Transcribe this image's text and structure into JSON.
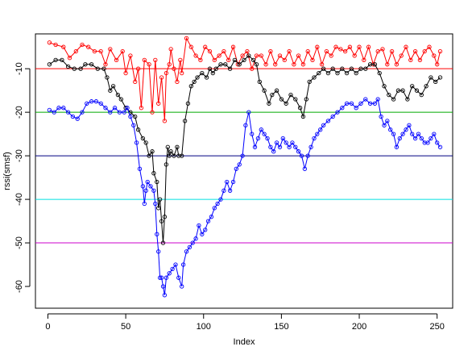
{
  "chart_data": {
    "type": "line",
    "xlabel": "Index",
    "ylabel": "rssi(smsf)",
    "xlim": [
      -8,
      260
    ],
    "ylim": [
      -65,
      -2
    ],
    "xticks": [
      0,
      50,
      100,
      150,
      200,
      250
    ],
    "yticks": [
      -10,
      -20,
      -30,
      -40,
      -50,
      -60
    ],
    "grid": false,
    "hlines": [
      {
        "y": -10,
        "color": "#ff0000"
      },
      {
        "y": -20,
        "color": "#00aa00"
      },
      {
        "y": -30,
        "color": "#000080"
      },
      {
        "y": -40,
        "color": "#00e0e0"
      },
      {
        "y": -50,
        "color": "#cc00cc"
      }
    ],
    "series": [
      {
        "color": "#ff0000",
        "points": [
          [
            1,
            -4
          ],
          [
            5,
            -4.5
          ],
          [
            10,
            -5
          ],
          [
            14,
            -7.5
          ],
          [
            18,
            -6
          ],
          [
            22,
            -4.5
          ],
          [
            26,
            -5
          ],
          [
            30,
            -6
          ],
          [
            34,
            -6
          ],
          [
            37,
            -9
          ],
          [
            40,
            -5.5
          ],
          [
            44,
            -8
          ],
          [
            48,
            -6
          ],
          [
            50,
            -11
          ],
          [
            53,
            -7
          ],
          [
            56,
            -13
          ],
          [
            58,
            -10
          ],
          [
            60,
            -19
          ],
          [
            62,
            -8
          ],
          [
            65,
            -9
          ],
          [
            67,
            -20
          ],
          [
            69,
            -8
          ],
          [
            71,
            -18
          ],
          [
            73,
            -12
          ],
          [
            75,
            -22
          ],
          [
            76,
            -11
          ],
          [
            78,
            -9
          ],
          [
            79,
            -5.5
          ],
          [
            81,
            -10
          ],
          [
            83,
            -13
          ],
          [
            85,
            -8
          ],
          [
            86,
            -11
          ],
          [
            89,
            -3
          ],
          [
            92,
            -5
          ],
          [
            95,
            -7
          ],
          [
            98,
            -8
          ],
          [
            101,
            -5
          ],
          [
            104,
            -6
          ],
          [
            107,
            -8
          ],
          [
            110,
            -7
          ],
          [
            113,
            -6
          ],
          [
            116,
            -8
          ],
          [
            119,
            -5
          ],
          [
            122,
            -9
          ],
          [
            125,
            -7
          ],
          [
            128,
            -6
          ],
          [
            131,
            -10
          ],
          [
            134,
            -7
          ],
          [
            137,
            -7
          ],
          [
            140,
            -9
          ],
          [
            143,
            -6
          ],
          [
            146,
            -9
          ],
          [
            149,
            -7
          ],
          [
            152,
            -8
          ],
          [
            155,
            -6
          ],
          [
            158,
            -9
          ],
          [
            161,
            -7
          ],
          [
            164,
            -9
          ],
          [
            167,
            -6
          ],
          [
            170,
            -8
          ],
          [
            173,
            -5
          ],
          [
            176,
            -9
          ],
          [
            179,
            -6
          ],
          [
            182,
            -7
          ],
          [
            185,
            -5
          ],
          [
            188,
            -5.5
          ],
          [
            191,
            -6
          ],
          [
            194,
            -5
          ],
          [
            197,
            -7
          ],
          [
            200,
            -5
          ],
          [
            203,
            -8
          ],
          [
            206,
            -5
          ],
          [
            209,
            -9
          ],
          [
            212,
            -6
          ],
          [
            215,
            -5.5
          ],
          [
            218,
            -9
          ],
          [
            221,
            -6
          ],
          [
            224,
            -9
          ],
          [
            227,
            -7
          ],
          [
            230,
            -5
          ],
          [
            233,
            -8
          ],
          [
            236,
            -6
          ],
          [
            239,
            -8
          ],
          [
            242,
            -6
          ],
          [
            245,
            -5
          ],
          [
            248,
            -7
          ],
          [
            250,
            -9
          ],
          [
            252,
            -6
          ]
        ]
      },
      {
        "color": "#000000",
        "points": [
          [
            1,
            -9
          ],
          [
            5,
            -8
          ],
          [
            9,
            -8
          ],
          [
            13,
            -9.5
          ],
          [
            17,
            -10
          ],
          [
            21,
            -10
          ],
          [
            24,
            -9
          ],
          [
            28,
            -9
          ],
          [
            32,
            -10
          ],
          [
            36,
            -10
          ],
          [
            38,
            -12
          ],
          [
            40,
            -15
          ],
          [
            42,
            -14
          ],
          [
            45,
            -16
          ],
          [
            47,
            -17
          ],
          [
            50,
            -19
          ],
          [
            53,
            -20
          ],
          [
            56,
            -21
          ],
          [
            58,
            -24
          ],
          [
            61,
            -26
          ],
          [
            63,
            -27
          ],
          [
            65,
            -30
          ],
          [
            67,
            -29
          ],
          [
            68,
            -34
          ],
          [
            70,
            -36
          ],
          [
            71,
            -42
          ],
          [
            72,
            -40
          ],
          [
            73,
            -45
          ],
          [
            74,
            -50
          ],
          [
            75,
            -44
          ],
          [
            76,
            -32
          ],
          [
            77,
            -28
          ],
          [
            78,
            -30
          ],
          [
            79,
            -29
          ],
          [
            81,
            -30
          ],
          [
            83,
            -28
          ],
          [
            84,
            -30
          ],
          [
            86,
            -30
          ],
          [
            88,
            -22
          ],
          [
            90,
            -18
          ],
          [
            92,
            -14
          ],
          [
            94,
            -13
          ],
          [
            96,
            -12
          ],
          [
            99,
            -11
          ],
          [
            102,
            -12
          ],
          [
            104,
            -10
          ],
          [
            106,
            -11
          ],
          [
            108,
            -10
          ],
          [
            111,
            -9
          ],
          [
            114,
            -9
          ],
          [
            117,
            -10
          ],
          [
            120,
            -8
          ],
          [
            123,
            -9
          ],
          [
            126,
            -8
          ],
          [
            129,
            -7
          ],
          [
            132,
            -8
          ],
          [
            134,
            -9
          ],
          [
            136,
            -13
          ],
          [
            139,
            -15
          ],
          [
            142,
            -18
          ],
          [
            144,
            -16
          ],
          [
            147,
            -15
          ],
          [
            150,
            -17
          ],
          [
            153,
            -18
          ],
          [
            156,
            -16
          ],
          [
            159,
            -17
          ],
          [
            162,
            -19
          ],
          [
            164,
            -21
          ],
          [
            166,
            -17
          ],
          [
            168,
            -13
          ],
          [
            171,
            -12
          ],
          [
            174,
            -11
          ],
          [
            177,
            -10
          ],
          [
            180,
            -11
          ],
          [
            183,
            -10
          ],
          [
            186,
            -11
          ],
          [
            189,
            -10
          ],
          [
            192,
            -11
          ],
          [
            195,
            -10
          ],
          [
            198,
            -11
          ],
          [
            201,
            -10
          ],
          [
            204,
            -10
          ],
          [
            207,
            -9
          ],
          [
            210,
            -9
          ],
          [
            213,
            -11
          ],
          [
            216,
            -14
          ],
          [
            219,
            -16
          ],
          [
            222,
            -17
          ],
          [
            225,
            -15
          ],
          [
            228,
            -15
          ],
          [
            231,
            -17
          ],
          [
            234,
            -14
          ],
          [
            237,
            -15
          ],
          [
            240,
            -16
          ],
          [
            243,
            -14
          ],
          [
            246,
            -12
          ],
          [
            249,
            -13
          ],
          [
            252,
            -12
          ]
        ]
      },
      {
        "color": "#0000ff",
        "points": [
          [
            1,
            -19.5
          ],
          [
            4,
            -20
          ],
          [
            7,
            -19
          ],
          [
            10,
            -19
          ],
          [
            13,
            -20
          ],
          [
            16,
            -21
          ],
          [
            19,
            -21.5
          ],
          [
            22,
            -20
          ],
          [
            25,
            -18
          ],
          [
            28,
            -17.5
          ],
          [
            31,
            -17.5
          ],
          [
            34,
            -18
          ],
          [
            37,
            -19
          ],
          [
            40,
            -20
          ],
          [
            43,
            -19
          ],
          [
            46,
            -20
          ],
          [
            49,
            -20
          ],
          [
            51,
            -19
          ],
          [
            53,
            -21
          ],
          [
            55,
            -23
          ],
          [
            57,
            -27
          ],
          [
            59,
            -33
          ],
          [
            61,
            -37
          ],
          [
            62,
            -41
          ],
          [
            63,
            -38
          ],
          [
            64,
            -36
          ],
          [
            66,
            -37
          ],
          [
            68,
            -38
          ],
          [
            69,
            -41
          ],
          [
            70,
            -48
          ],
          [
            71,
            -52
          ],
          [
            72,
            -58
          ],
          [
            73,
            -58
          ],
          [
            74,
            -60
          ],
          [
            75,
            -62
          ],
          [
            76,
            -58
          ],
          [
            78,
            -57
          ],
          [
            80,
            -56
          ],
          [
            82,
            -55
          ],
          [
            84,
            -58
          ],
          [
            86,
            -60
          ],
          [
            87,
            -55
          ],
          [
            89,
            -52
          ],
          [
            91,
            -51
          ],
          [
            93,
            -50
          ],
          [
            95,
            -49
          ],
          [
            97,
            -46
          ],
          [
            99,
            -48
          ],
          [
            101,
            -47
          ],
          [
            103,
            -45
          ],
          [
            105,
            -44
          ],
          [
            107,
            -42
          ],
          [
            109,
            -41
          ],
          [
            111,
            -40
          ],
          [
            113,
            -38
          ],
          [
            115,
            -36
          ],
          [
            117,
            -38
          ],
          [
            119,
            -36
          ],
          [
            121,
            -33
          ],
          [
            123,
            -32
          ],
          [
            125,
            -30
          ],
          [
            127,
            -23
          ],
          [
            129,
            -20
          ],
          [
            131,
            -25
          ],
          [
            133,
            -28
          ],
          [
            135,
            -26
          ],
          [
            137,
            -24
          ],
          [
            139,
            -25
          ],
          [
            141,
            -26
          ],
          [
            143,
            -28
          ],
          [
            145,
            -29
          ],
          [
            147,
            -27
          ],
          [
            149,
            -28
          ],
          [
            151,
            -26
          ],
          [
            153,
            -27
          ],
          [
            155,
            -28
          ],
          [
            157,
            -27
          ],
          [
            159,
            -28
          ],
          [
            161,
            -29
          ],
          [
            163,
            -30
          ],
          [
            165,
            -33
          ],
          [
            167,
            -30
          ],
          [
            169,
            -28
          ],
          [
            171,
            -26
          ],
          [
            173,
            -25
          ],
          [
            175,
            -24
          ],
          [
            177,
            -23
          ],
          [
            180,
            -22
          ],
          [
            183,
            -21
          ],
          [
            186,
            -20
          ],
          [
            189,
            -19
          ],
          [
            192,
            -18
          ],
          [
            195,
            -18
          ],
          [
            198,
            -19
          ],
          [
            201,
            -18
          ],
          [
            204,
            -17
          ],
          [
            207,
            -18
          ],
          [
            210,
            -18
          ],
          [
            212,
            -17
          ],
          [
            214,
            -21
          ],
          [
            216,
            -23
          ],
          [
            218,
            -22
          ],
          [
            220,
            -24
          ],
          [
            222,
            -25
          ],
          [
            224,
            -28
          ],
          [
            226,
            -26
          ],
          [
            228,
            -25
          ],
          [
            230,
            -24
          ],
          [
            232,
            -23
          ],
          [
            234,
            -25
          ],
          [
            236,
            -26
          ],
          [
            238,
            -25
          ],
          [
            240,
            -26
          ],
          [
            242,
            -27
          ],
          [
            244,
            -27
          ],
          [
            246,
            -26
          ],
          [
            248,
            -25
          ],
          [
            250,
            -27
          ],
          [
            252,
            -28
          ]
        ]
      }
    ]
  }
}
